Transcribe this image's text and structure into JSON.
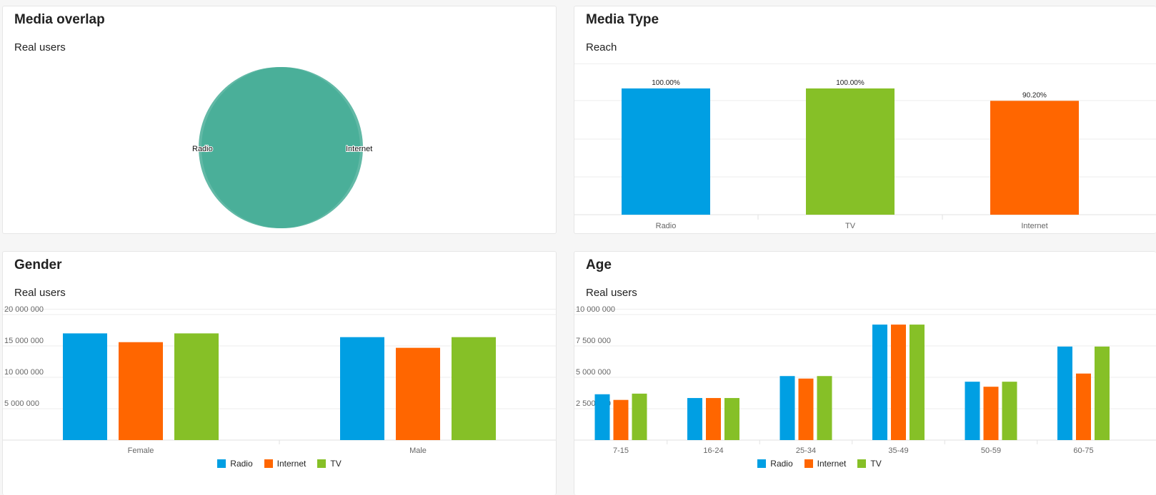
{
  "colors": {
    "Radio": "#009fe3",
    "Internet": "#ff6600",
    "TV": "#86c027",
    "venn": "#46ad96"
  },
  "cards": {
    "overlap": {
      "title": "Media overlap",
      "subtitle": "Real users"
    },
    "media_type": {
      "title": "Media Type",
      "subtitle": "Reach"
    },
    "gender": {
      "title": "Gender",
      "subtitle": "Real users"
    },
    "age": {
      "title": "Age",
      "subtitle": "Real users"
    }
  },
  "legend": [
    "Radio",
    "Internet",
    "TV"
  ],
  "chart_data": [
    {
      "id": "overlap",
      "type": "venn",
      "sets": [
        "Radio",
        "Internet"
      ],
      "labels": [
        "Radio",
        "Internet"
      ]
    },
    {
      "id": "media_type",
      "type": "bar",
      "categories": [
        "Radio",
        "TV",
        "Internet"
      ],
      "values": [
        100.0,
        100.0,
        90.2
      ],
      "data_labels": [
        "100.00%",
        "100.00%",
        "90.20%"
      ],
      "colors": [
        "Radio",
        "TV",
        "Internet"
      ],
      "ylim": [
        0,
        100
      ],
      "grid": true
    },
    {
      "id": "gender",
      "type": "bar",
      "categories": [
        "Female",
        "Male"
      ],
      "series": [
        {
          "name": "Radio",
          "values": [
            17000000,
            16400000
          ]
        },
        {
          "name": "Internet",
          "values": [
            15600000,
            14700000
          ]
        },
        {
          "name": "TV",
          "values": [
            17000000,
            16400000
          ]
        }
      ],
      "yticks": [
        5000000,
        10000000,
        15000000,
        20000000
      ],
      "ytick_labels": [
        "5 000 000",
        "10 000 000",
        "15 000 000",
        "20 000 000"
      ],
      "ylim": [
        0,
        20000000
      ],
      "grid": true,
      "legend": "bottom"
    },
    {
      "id": "age",
      "type": "bar",
      "categories": [
        "7-15",
        "16-24",
        "25-34",
        "35-49",
        "50-59",
        "60-75"
      ],
      "series": [
        {
          "name": "Radio",
          "values": [
            3650000,
            3350000,
            5100000,
            9200000,
            4650000,
            7450000
          ]
        },
        {
          "name": "Internet",
          "values": [
            3200000,
            3350000,
            4900000,
            9200000,
            4250000,
            5300000
          ]
        },
        {
          "name": "TV",
          "values": [
            3700000,
            3350000,
            5100000,
            9200000,
            4650000,
            7450000
          ]
        }
      ],
      "yticks": [
        2500000,
        5000000,
        7500000,
        10000000
      ],
      "ytick_labels": [
        "2 500 000",
        "5 000 000",
        "7 500 000",
        "10 000 000"
      ],
      "ylim": [
        0,
        10000000
      ],
      "grid": true,
      "legend": "bottom"
    }
  ]
}
